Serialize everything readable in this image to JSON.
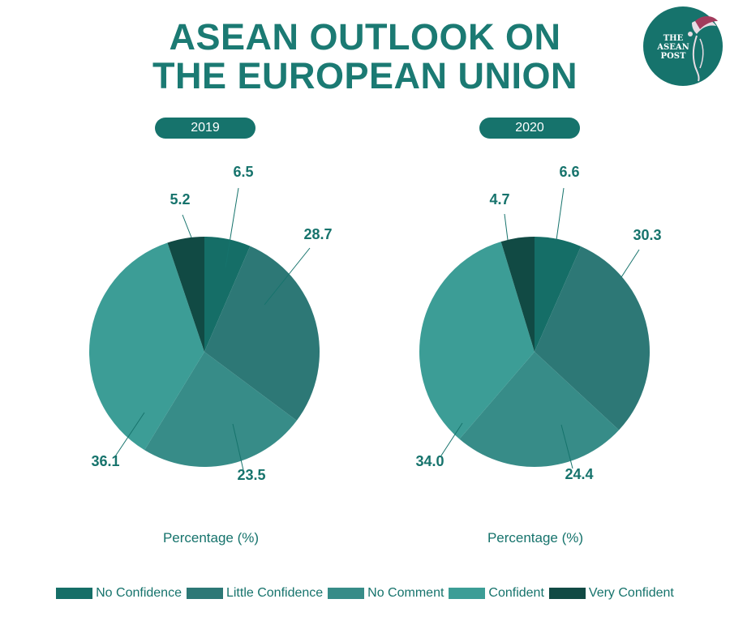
{
  "title_lines": [
    "ASEAN OUTLOOK ON",
    "THE EUROPEAN UNION"
  ],
  "logo": {
    "lines": [
      "THE",
      "ASEAN",
      "POST"
    ]
  },
  "colors": {
    "accent": "#16736c",
    "categories": [
      "#156e67",
      "#2d7876",
      "#378c88",
      "#3c9d96",
      "#114a44"
    ]
  },
  "chart_data": [
    {
      "type": "pie",
      "title": "2019",
      "categories": [
        "No Confidence",
        "Little Confidence",
        "No Comment",
        "Confident",
        "Very Confident"
      ],
      "values": [
        6.5,
        28.7,
        23.5,
        36.1,
        5.2
      ],
      "label_format": "one_decimal",
      "xlabel": "Percentage (%)"
    },
    {
      "type": "pie",
      "title": "2020",
      "categories": [
        "No Confidence",
        "Little Confidence",
        "No Comment",
        "Confident",
        "Very Confident"
      ],
      "values": [
        6.6,
        30.3,
        24.4,
        34.0,
        4.7
      ],
      "label_format": "one_decimal",
      "xlabel": "Percentage (%)"
    }
  ],
  "legend": {
    "placement": "bottom",
    "items": [
      "No Confidence",
      "Little Confidence",
      "No Comment",
      "Confident",
      "Very Confident"
    ]
  }
}
